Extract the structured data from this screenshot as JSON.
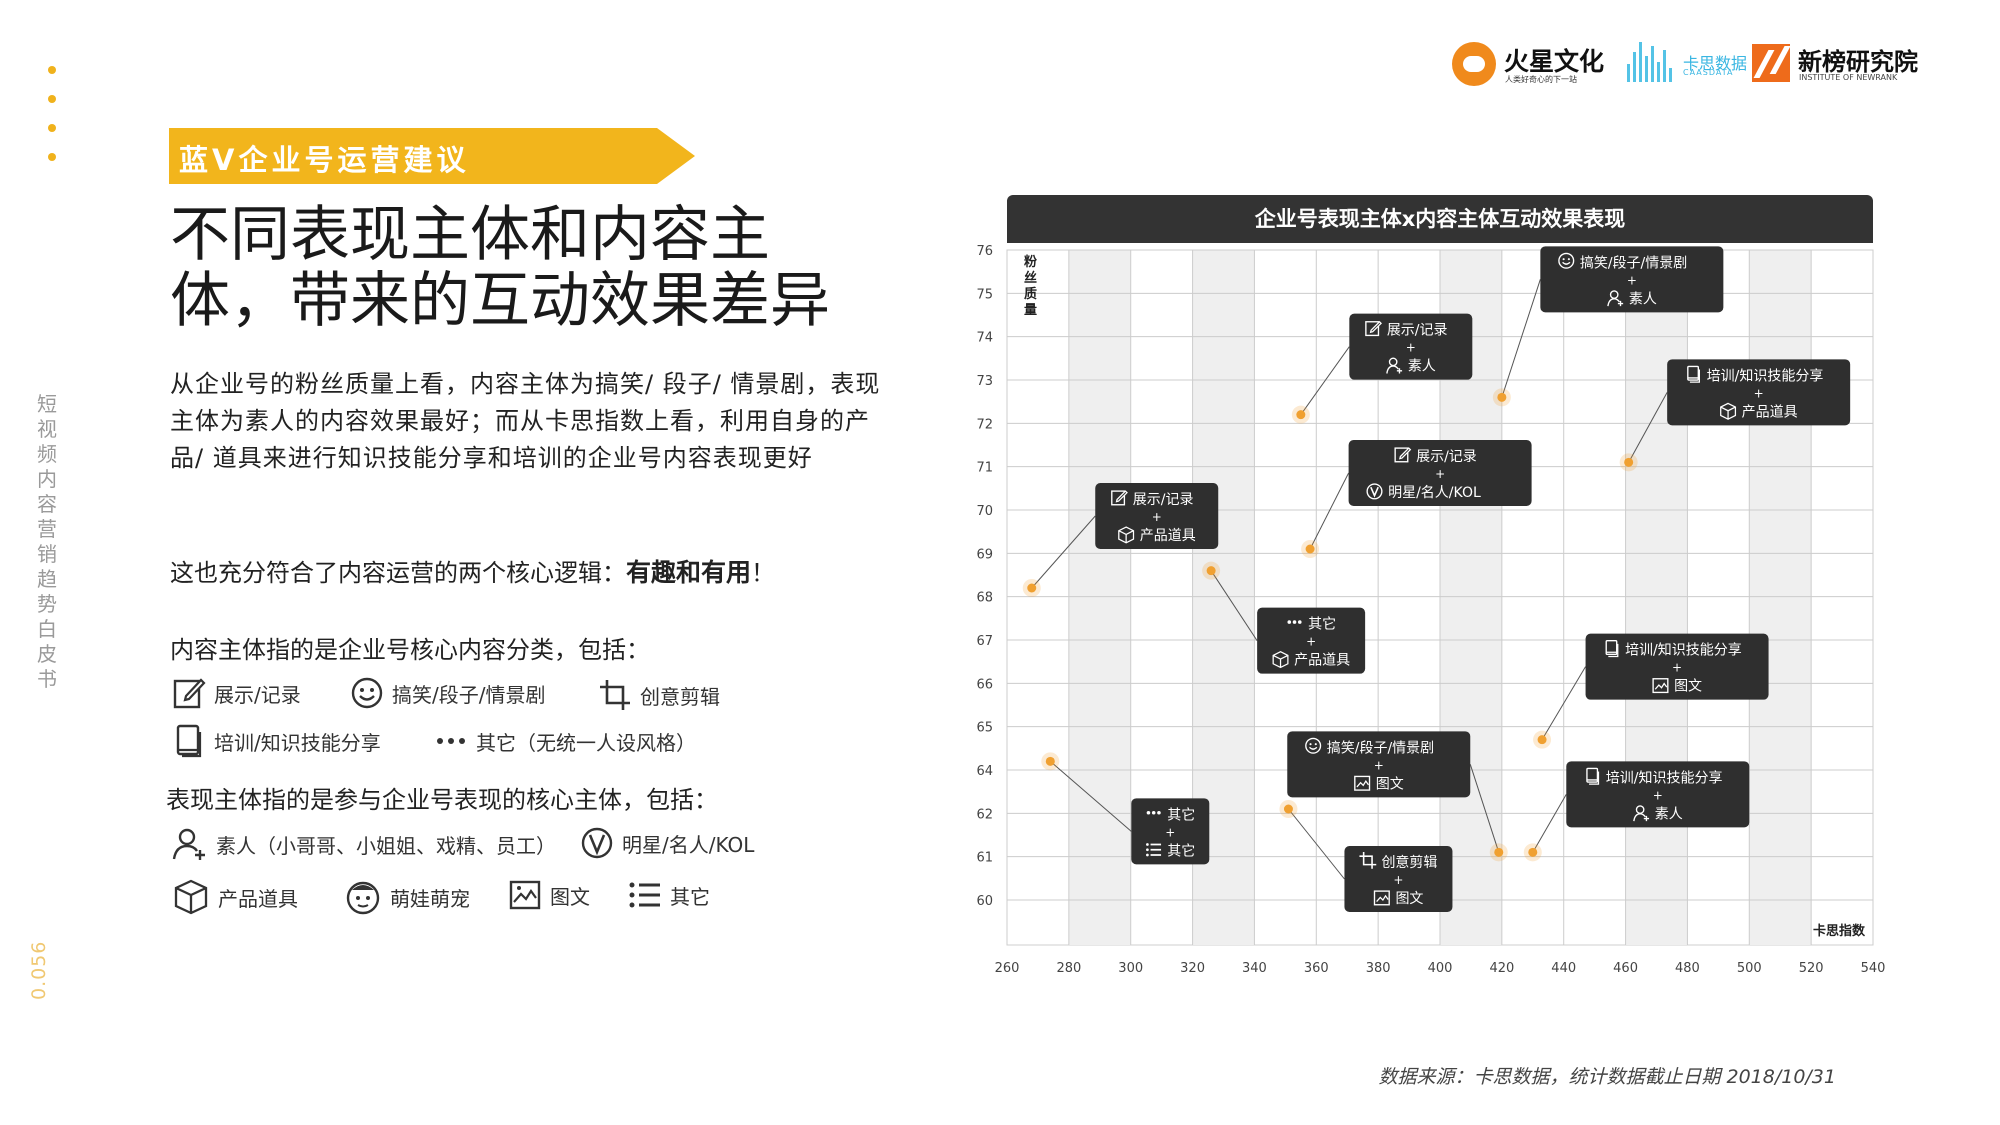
{
  "sidebar": {
    "title": "短视频内容营销趋势白皮书",
    "page_number": "0.056"
  },
  "logos": {
    "huoxing": {
      "name": "火星文化",
      "sub": "人类好奇心的下一站"
    },
    "kasi": {
      "name": "卡思数据",
      "sub": "CAASDATA"
    },
    "xinbang": {
      "name": "新榜研究院",
      "sub": "INSTITUTE OF NEWRANK"
    }
  },
  "banner": "蓝V企业号运营建议",
  "headline": [
    "不同表现主体和内容主",
    "体，带来的互动效果差异"
  ],
  "paragraph": "从企业号的粉丝质量上看，内容主体为搞笑/ 段子/ 情景剧，表现主体为素人的内容效果最好；而从卡思指数上看，利用自身的产品/ 道具来进行知识技能分享和培训的企业号内容表现更好",
  "logic": {
    "prefix": "这也充分符合了内容运营的两个核心逻辑：",
    "bold": "有趣和有用",
    "suffix": "！"
  },
  "content_section": {
    "title": "内容主体指的是企业号核心内容分类，包括：",
    "items": [
      {
        "icon": "edit-icon",
        "label": "展示/记录"
      },
      {
        "icon": "smile-icon",
        "label": "搞笑/段子/情景剧"
      },
      {
        "icon": "crop-icon",
        "label": "创意剪辑"
      },
      {
        "icon": "book-icon",
        "label": "培训/知识技能分享"
      },
      {
        "icon": "dots-icon",
        "label": "其它（无统一人设风格）"
      }
    ]
  },
  "performer_section": {
    "title": "表现主体指的是参与企业号表现的核心主体，包括：",
    "items": [
      {
        "icon": "person-icon",
        "label": "素人（小哥哥、小姐姐、戏精、员工）"
      },
      {
        "icon": "star-v-icon",
        "label": "明星/名人/KOL"
      },
      {
        "icon": "box-icon",
        "label": "产品道具"
      },
      {
        "icon": "baby-pet-icon",
        "label": "萌娃萌宠"
      },
      {
        "icon": "image-icon",
        "label": "图文"
      },
      {
        "icon": "list-icon",
        "label": "其它"
      }
    ]
  },
  "chart_data": {
    "type": "scatter",
    "title": "企业号表现主体x内容主体互动效果表现",
    "xlabel": "卡思指数",
    "ylabel": "粉丝质量",
    "xlim": [
      260,
      540
    ],
    "x_ticks": [
      260,
      280,
      300,
      320,
      340,
      360,
      380,
      400,
      420,
      440,
      460,
      480,
      500,
      520,
      540
    ],
    "y_ticks": [
      60,
      61,
      62,
      64,
      65,
      66,
      67,
      68,
      69,
      70,
      71,
      72,
      73,
      74,
      75,
      76
    ],
    "grid": true,
    "accent_color": "#f0a030",
    "points": [
      {
        "x": 268,
        "y": 68.2,
        "content": "展示/记录",
        "content_icon": "edit-icon",
        "performer": "产品道具",
        "performer_icon": "box-icon"
      },
      {
        "x": 274,
        "y": 64.2,
        "content": "其它",
        "content_icon": "dots-icon",
        "performer": "其它",
        "performer_icon": "list-icon"
      },
      {
        "x": 326,
        "y": 68.6,
        "content": "其它",
        "content_icon": "dots-icon",
        "performer": "产品道具",
        "performer_icon": "box-icon"
      },
      {
        "x": 351,
        "y": 62.2,
        "content": "创意剪辑",
        "content_icon": "crop-icon",
        "performer": "图文",
        "performer_icon": "image-icon"
      },
      {
        "x": 355,
        "y": 72.2,
        "content": "展示/记录",
        "content_icon": "edit-icon",
        "performer": "素人",
        "performer_icon": "person-icon"
      },
      {
        "x": 358,
        "y": 69.1,
        "content": "展示/记录",
        "content_icon": "edit-icon",
        "performer": "明星/名人/KOL",
        "performer_icon": "star-v-icon"
      },
      {
        "x": 419,
        "y": 61.1,
        "content": "搞笑/段子/情景剧",
        "content_icon": "smile-icon",
        "performer": "图文",
        "performer_icon": "image-icon"
      },
      {
        "x": 420,
        "y": 72.6,
        "content": "搞笑/段子/情景剧",
        "content_icon": "smile-icon",
        "performer": "素人",
        "performer_icon": "person-icon"
      },
      {
        "x": 430,
        "y": 61.1,
        "content": "培训/知识技能分享",
        "content_icon": "book-icon",
        "performer": "素人",
        "performer_icon": "person-icon"
      },
      {
        "x": 433,
        "y": 64.7,
        "content": "培训/知识技能分享",
        "content_icon": "book-icon",
        "performer": "图文",
        "performer_icon": "image-icon"
      },
      {
        "x": 461,
        "y": 71.1,
        "content": "培训/知识技能分享",
        "content_icon": "book-icon",
        "performer": "产品道具",
        "performer_icon": "box-icon"
      }
    ]
  },
  "source": "数据来源：卡思数据，统计数据截止日期 2018/10/31"
}
